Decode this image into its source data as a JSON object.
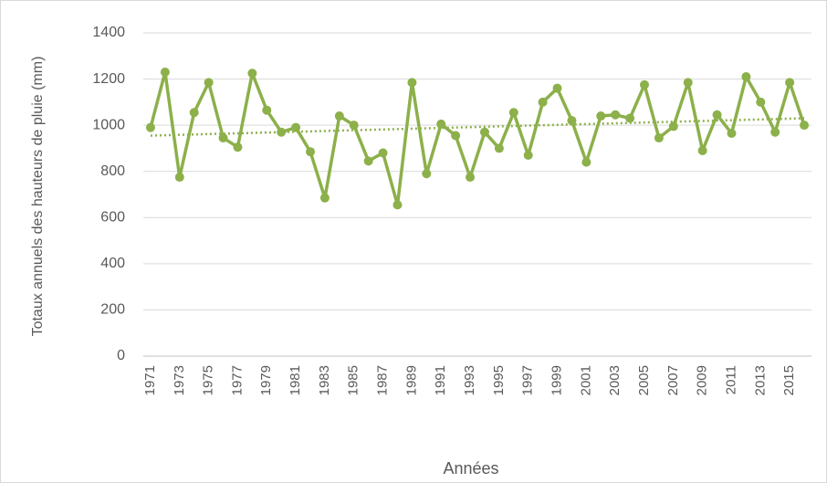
{
  "chart_data": {
    "type": "line",
    "y_label": "Totaux annuels des hauteurs de pluie (mm)",
    "x_label": "Années",
    "categories": [
      "1971",
      null,
      "1973",
      null,
      "1975",
      null,
      "1977",
      null,
      "1979",
      null,
      "1981",
      null,
      "1983",
      null,
      "1985",
      null,
      "1987",
      null,
      "1989",
      null,
      "1991",
      null,
      "1993",
      null,
      "1995",
      null,
      "1997",
      null,
      "1999",
      null,
      "2001",
      null,
      "2003",
      null,
      "2005",
      null,
      "2007",
      null,
      "2009",
      null,
      "2011",
      null,
      "2013",
      null,
      "2015",
      null
    ],
    "series": [
      {
        "color": "#8cb04a",
        "values": [
          990,
          1230,
          775,
          1055,
          1185,
          945,
          905,
          1225,
          1065,
          970,
          990,
          885,
          685,
          1040,
          1000,
          845,
          880,
          655,
          1185,
          790,
          1005,
          955,
          775,
          970,
          900,
          1055,
          870,
          1100,
          1160,
          1020,
          840,
          1040,
          1045,
          1030,
          1175,
          945,
          995,
          1185,
          890,
          1045,
          965,
          1210,
          1100,
          970,
          1185,
          1000
        ]
      }
    ],
    "trend_values": [
      955,
      1030
    ],
    "ylim": [
      0,
      1400
    ],
    "yticks": [
      0,
      200,
      400,
      600,
      800,
      1000,
      1200,
      1400
    ],
    "grid": true
  }
}
